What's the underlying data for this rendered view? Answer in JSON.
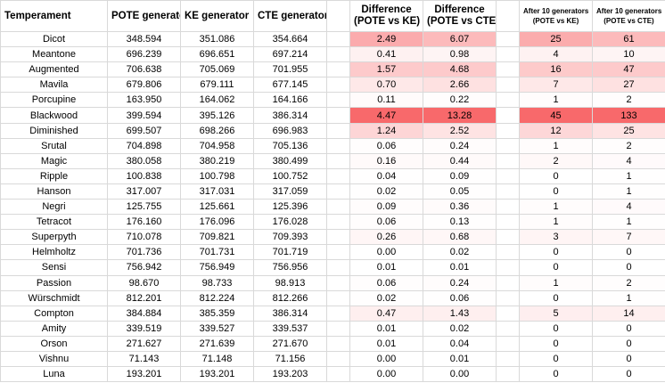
{
  "headers": {
    "temperament": "Temperament",
    "pote": "POTE generator",
    "ke": "KE generator",
    "cte": "CTE generator",
    "diff_ke_1": "Difference",
    "diff_ke_2": "(POTE vs KE)",
    "diff_cte_1": "Difference",
    "diff_cte_2": "(POTE vs CTE)",
    "after_ke_1": "After 10 generators",
    "after_ke_2": "(POTE vs KE)",
    "after_cte_1": "After 10 generators",
    "after_cte_2": "(POTE vs CTE)"
  },
  "colors": {
    "heat_low": "#ffffff",
    "heat_high": "#f8696b",
    "grid": "#d9d9d9"
  },
  "rows": [
    {
      "name": "Dicot",
      "pote": "348.594",
      "ke": "351.086",
      "cte": "354.664",
      "d1": "2.49",
      "d2": "6.07",
      "a1": "25",
      "a2": "61"
    },
    {
      "name": "Meantone",
      "pote": "696.239",
      "ke": "696.651",
      "cte": "697.214",
      "d1": "0.41",
      "d2": "0.98",
      "a1": "4",
      "a2": "10"
    },
    {
      "name": "Augmented",
      "pote": "706.638",
      "ke": "705.069",
      "cte": "701.955",
      "d1": "1.57",
      "d2": "4.68",
      "a1": "16",
      "a2": "47"
    },
    {
      "name": "Mavila",
      "pote": "679.806",
      "ke": "679.111",
      "cte": "677.145",
      "d1": "0.70",
      "d2": "2.66",
      "a1": "7",
      "a2": "27"
    },
    {
      "name": "Porcupine",
      "pote": "163.950",
      "ke": "164.062",
      "cte": "164.166",
      "d1": "0.11",
      "d2": "0.22",
      "a1": "1",
      "a2": "2"
    },
    {
      "name": "Blackwood",
      "pote": "399.594",
      "ke": "395.126",
      "cte": "386.314",
      "d1": "4.47",
      "d2": "13.28",
      "a1": "45",
      "a2": "133"
    },
    {
      "name": "Diminished",
      "pote": "699.507",
      "ke": "698.266",
      "cte": "696.983",
      "d1": "1.24",
      "d2": "2.52",
      "a1": "12",
      "a2": "25"
    },
    {
      "name": "Srutal",
      "pote": "704.898",
      "ke": "704.958",
      "cte": "705.136",
      "d1": "0.06",
      "d2": "0.24",
      "a1": "1",
      "a2": "2"
    },
    {
      "name": "Magic",
      "pote": "380.058",
      "ke": "380.219",
      "cte": "380.499",
      "d1": "0.16",
      "d2": "0.44",
      "a1": "2",
      "a2": "4"
    },
    {
      "name": "Ripple",
      "pote": "100.838",
      "ke": "100.798",
      "cte": "100.752",
      "d1": "0.04",
      "d2": "0.09",
      "a1": "0",
      "a2": "1"
    },
    {
      "name": "Hanson",
      "pote": "317.007",
      "ke": "317.031",
      "cte": "317.059",
      "d1": "0.02",
      "d2": "0.05",
      "a1": "0",
      "a2": "1"
    },
    {
      "name": "Negri",
      "pote": "125.755",
      "ke": "125.661",
      "cte": "125.396",
      "d1": "0.09",
      "d2": "0.36",
      "a1": "1",
      "a2": "4"
    },
    {
      "name": "Tetracot",
      "pote": "176.160",
      "ke": "176.096",
      "cte": "176.028",
      "d1": "0.06",
      "d2": "0.13",
      "a1": "1",
      "a2": "1"
    },
    {
      "name": "Superpyth",
      "pote": "710.078",
      "ke": "709.821",
      "cte": "709.393",
      "d1": "0.26",
      "d2": "0.68",
      "a1": "3",
      "a2": "7"
    },
    {
      "name": "Helmholtz",
      "pote": "701.736",
      "ke": "701.731",
      "cte": "701.719",
      "d1": "0.00",
      "d2": "0.02",
      "a1": "0",
      "a2": "0"
    },
    {
      "name": "Sensi",
      "pote": "756.942",
      "ke": "756.949",
      "cte": "756.956",
      "d1": "0.01",
      "d2": "0.01",
      "a1": "0",
      "a2": "0"
    },
    {
      "name": "Passion",
      "pote": "98.670",
      "ke": "98.733",
      "cte": "98.913",
      "d1": "0.06",
      "d2": "0.24",
      "a1": "1",
      "a2": "2"
    },
    {
      "name": "Würschmidt",
      "pote": "812.201",
      "ke": "812.224",
      "cte": "812.266",
      "d1": "0.02",
      "d2": "0.06",
      "a1": "0",
      "a2": "1"
    },
    {
      "name": "Compton",
      "pote": "384.884",
      "ke": "385.359",
      "cte": "386.314",
      "d1": "0.47",
      "d2": "1.43",
      "a1": "5",
      "a2": "14"
    },
    {
      "name": "Amity",
      "pote": "339.519",
      "ke": "339.527",
      "cte": "339.537",
      "d1": "0.01",
      "d2": "0.02",
      "a1": "0",
      "a2": "0"
    },
    {
      "name": "Orson",
      "pote": "271.627",
      "ke": "271.639",
      "cte": "271.670",
      "d1": "0.01",
      "d2": "0.04",
      "a1": "0",
      "a2": "0"
    },
    {
      "name": "Vishnu",
      "pote": "71.143",
      "ke": "71.148",
      "cte": "71.156",
      "d1": "0.00",
      "d2": "0.01",
      "a1": "0",
      "a2": "0"
    },
    {
      "name": "Luna",
      "pote": "193.201",
      "ke": "193.201",
      "cte": "193.203",
      "d1": "0.00",
      "d2": "0.00",
      "a1": "0",
      "a2": "0"
    }
  ]
}
